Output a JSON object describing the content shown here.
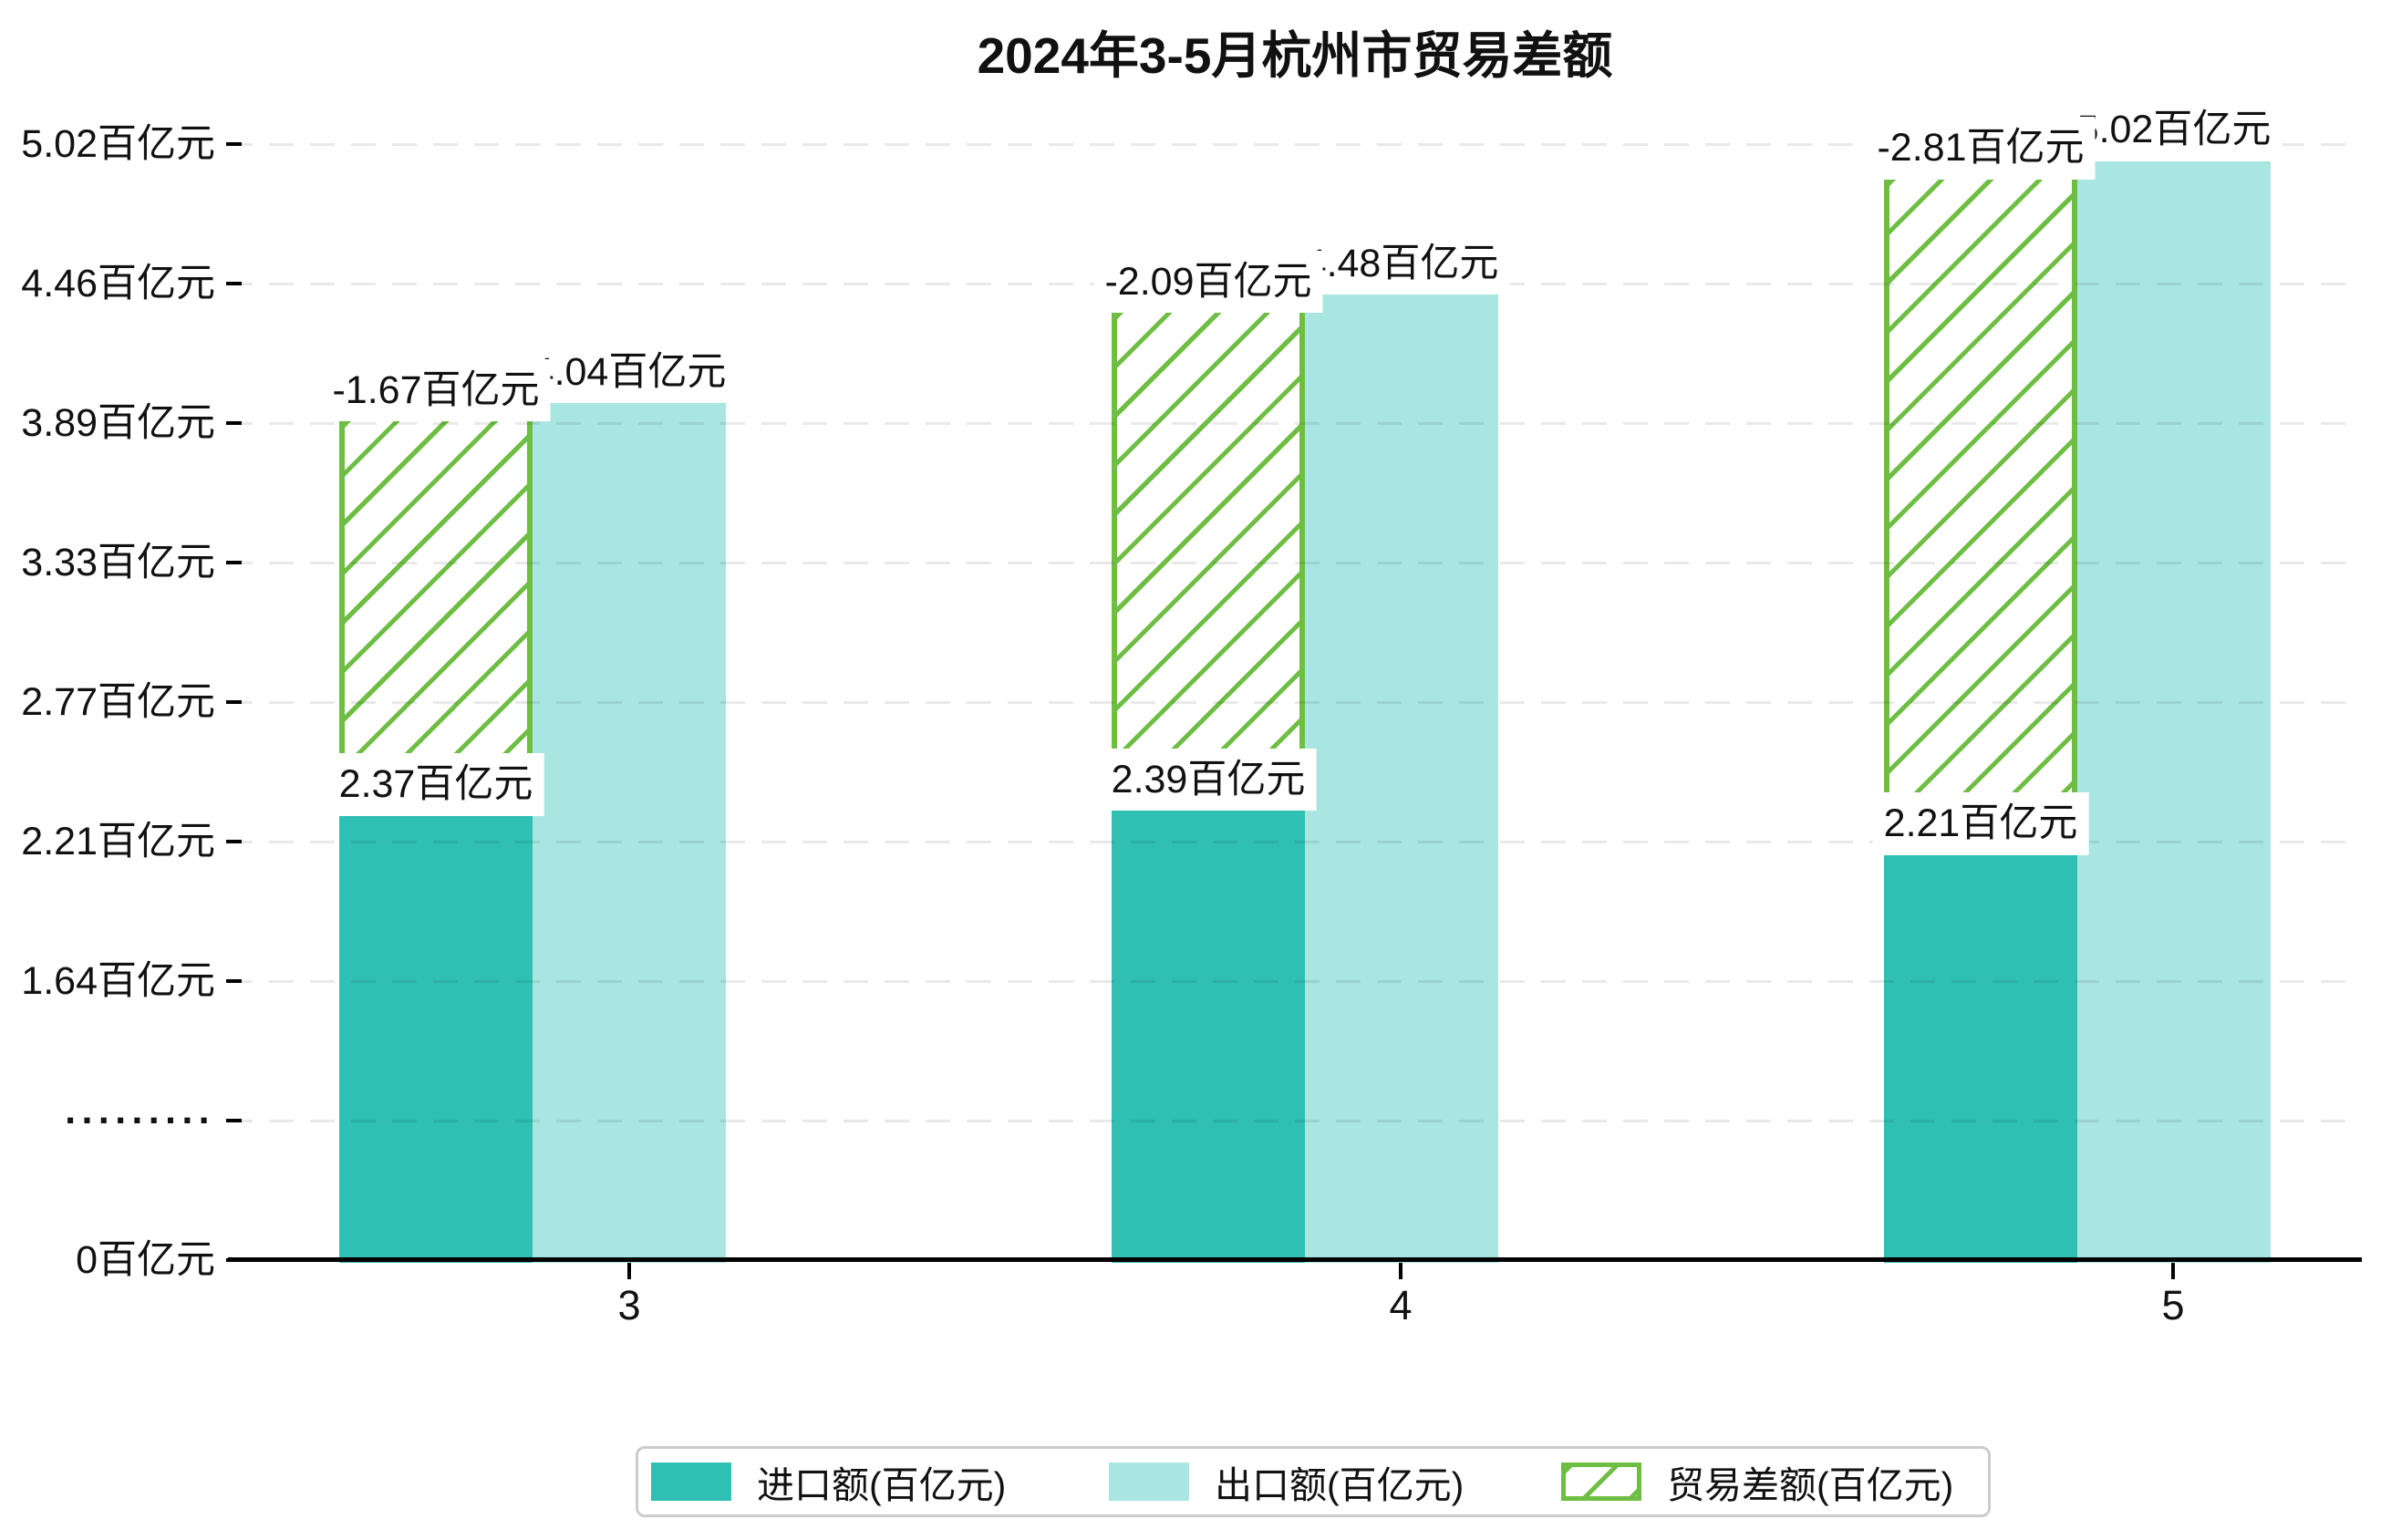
{
  "chart_data": {
    "type": "bar",
    "title": "2024年3-5月杭州市贸易差额",
    "categories": [
      "3",
      "4",
      "5"
    ],
    "series": [
      {
        "name": "进口额(百亿元)",
        "values": [
          2.37,
          2.39,
          2.21
        ],
        "data_labels": [
          "2.37百亿元",
          "2.39百亿元",
          "2.21百亿元"
        ],
        "color": "#30bfb3",
        "style": "solid"
      },
      {
        "name": "出口额(百亿元)",
        "values": [
          4.04,
          4.48,
          5.02
        ],
        "data_labels": [
          "4.04百亿元",
          "4.48百亿元",
          "5.02百亿元"
        ],
        "color": "#a9e6e1",
        "style": "solid"
      },
      {
        "name": "贸易差额(百亿元)",
        "values": [
          -1.67,
          -2.09,
          -2.81
        ],
        "data_labels": [
          "-1.67百亿元",
          "-2.09百亿元",
          "-2.81百亿元"
        ],
        "color": "#6fbe44",
        "style": "hatched",
        "drawn_as": "hatched segment spanning from import value up to export value"
      }
    ],
    "x_axis": {
      "tick_labels": [
        "3",
        "4",
        "5"
      ]
    },
    "y_axis": {
      "unit": "百亿元",
      "tick_labels": [
        "0百亿元",
        "·········",
        "1.64百亿元",
        "2.21百亿元",
        "2.77百亿元",
        "3.33百亿元",
        "3.89百亿元",
        "4.46百亿元",
        "5.02百亿元"
      ],
      "axis_break_label": "·········",
      "ylim": [
        0,
        5.02
      ]
    },
    "legend": {
      "position": "bottom",
      "items": [
        "进口额(百亿元)",
        "出口额(百亿元)",
        "贸易差额(百亿元)"
      ]
    },
    "grid": "horizontal dashed, drawn above bars"
  },
  "colors": {
    "import_bar": "#30bfb3",
    "export_bar": "#a9e6e1",
    "balance_hatch": "#6fbe44",
    "grid_line": "#e8e8e8",
    "axis_line": "#000000",
    "legend_border": "#cccccc",
    "label_bg": "#ffffff",
    "text": "#111111",
    "background": "#ffffff"
  }
}
